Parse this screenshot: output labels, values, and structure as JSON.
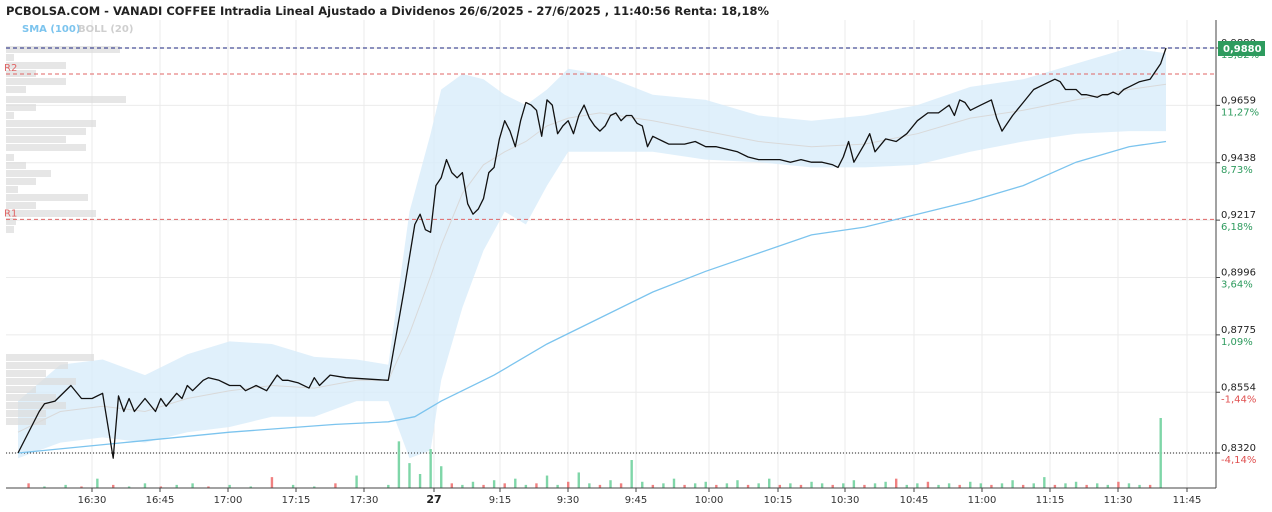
{
  "title": "PCBOLSA.COM - VANADI COFFEE Intradia Lineal Ajustado a Dividenos 26/6/2025 - 27/6/2025 , 11:40:56 Renta: 18,18%",
  "legend": {
    "sma": "SMA (100)",
    "boll": "BOLL (20)"
  },
  "colors": {
    "price": "#111111",
    "sma": "#7cc4ee",
    "boll_fill": "#d8ecfa",
    "boll_mid": "#d9d9d9",
    "vol_up": "#7fd6a8",
    "vol_down": "#f08080",
    "pivot": "#e06666",
    "last_line": "#1a237e",
    "tag_bg": "#2e9b5e",
    "pct_pos": "#2e9b5e",
    "pct_neg": "#e05050"
  },
  "last_price": "0,9880",
  "chart_data": {
    "type": "line",
    "title": "PCBOLSA.COM - VANADI COFFEE Intradia Lineal Ajustado a Dividenos 26/6/2025 - 27/6/2025 , 11:40:56 Renta: 18,18%",
    "xlabel": "",
    "ylabel": "",
    "ylim": [
      0.82,
      1.0
    ],
    "x_ticks": [
      "16:30",
      "16:45",
      "17:00",
      "17:15",
      "17:30",
      "27",
      "9:15",
      "9:30",
      "9:45",
      "10:00",
      "10:15",
      "10:30",
      "10:45",
      "11:00",
      "11:15",
      "11:30",
      "11:45"
    ],
    "y_ticks": [
      {
        "price": "0,8320",
        "value": 0.832,
        "pct": "-4,14%"
      },
      {
        "price": "0,8554",
        "value": 0.8554,
        "pct": "-1,44%"
      },
      {
        "price": "0,8775",
        "value": 0.8775,
        "pct": "1,09%"
      },
      {
        "price": "0,8996",
        "value": 0.8996,
        "pct": "3,64%"
      },
      {
        "price": "0,9217",
        "value": 0.9217,
        "pct": "6,18%"
      },
      {
        "price": "0,9438",
        "value": 0.9438,
        "pct": "8,73%"
      },
      {
        "price": "0,9659",
        "value": 0.9659,
        "pct": "11,27%"
      },
      {
        "price": "0,9880",
        "value": 0.988,
        "pct": "13,82%"
      }
    ],
    "pivots": [
      {
        "label": "R2",
        "value": 0.978
      },
      {
        "label": "R1",
        "value": 0.922
      }
    ],
    "series": [
      {
        "name": "Precio",
        "x": [
          0,
          4,
          5,
          7,
          10,
          12,
          14,
          16,
          18,
          19,
          20,
          21,
          22,
          24,
          26,
          27,
          28,
          30,
          31,
          32,
          33,
          35,
          36,
          38,
          40,
          42,
          43,
          45,
          47,
          49,
          50,
          51,
          53,
          55,
          56,
          57,
          59,
          62,
          70,
          73,
          75,
          76,
          77,
          78,
          79,
          80,
          81,
          82,
          83,
          84,
          85,
          86,
          87,
          88,
          89,
          90,
          91,
          92,
          93,
          94,
          95,
          96,
          97,
          98,
          99,
          100,
          101,
          102,
          103,
          104,
          105,
          106,
          107,
          108,
          109,
          110,
          111,
          112,
          113,
          114,
          115,
          116,
          117,
          118,
          119,
          120,
          121,
          122,
          123,
          124,
          126,
          128,
          130,
          132,
          134,
          136,
          138,
          140,
          142,
          144,
          146,
          148,
          150,
          152,
          154,
          155,
          156,
          157,
          158,
          160,
          161,
          162,
          164,
          166,
          168,
          170,
          172,
          174,
          176,
          177,
          178,
          179,
          180,
          182,
          184,
          185,
          186,
          188,
          190,
          192,
          194,
          196,
          197,
          198,
          200,
          201,
          202,
          204,
          205,
          206,
          207,
          208,
          209,
          210,
          212,
          214,
          216,
          217
        ],
        "values": [
          0.832,
          0.848,
          0.851,
          0.852,
          0.858,
          0.853,
          0.853,
          0.855,
          0.83,
          0.854,
          0.848,
          0.853,
          0.848,
          0.853,
          0.848,
          0.853,
          0.85,
          0.855,
          0.853,
          0.858,
          0.856,
          0.86,
          0.861,
          0.86,
          0.858,
          0.858,
          0.856,
          0.858,
          0.856,
          0.862,
          0.86,
          0.86,
          0.859,
          0.857,
          0.861,
          0.858,
          0.862,
          0.861,
          0.86,
          0.895,
          0.92,
          0.924,
          0.918,
          0.917,
          0.935,
          0.938,
          0.945,
          0.94,
          0.938,
          0.94,
          0.928,
          0.924,
          0.926,
          0.93,
          0.94,
          0.942,
          0.953,
          0.96,
          0.956,
          0.95,
          0.96,
          0.967,
          0.966,
          0.964,
          0.954,
          0.968,
          0.966,
          0.955,
          0.958,
          0.96,
          0.955,
          0.962,
          0.966,
          0.961,
          0.958,
          0.956,
          0.958,
          0.962,
          0.963,
          0.96,
          0.962,
          0.962,
          0.959,
          0.958,
          0.95,
          0.954,
          0.953,
          0.952,
          0.951,
          0.951,
          0.951,
          0.952,
          0.95,
          0.95,
          0.949,
          0.948,
          0.946,
          0.945,
          0.945,
          0.945,
          0.944,
          0.945,
          0.944,
          0.944,
          0.943,
          0.942,
          0.946,
          0.952,
          0.944,
          0.951,
          0.955,
          0.948,
          0.953,
          0.952,
          0.955,
          0.96,
          0.963,
          0.963,
          0.966,
          0.962,
          0.968,
          0.967,
          0.964,
          0.966,
          0.968,
          0.961,
          0.956,
          0.962,
          0.967,
          0.972,
          0.974,
          0.976,
          0.975,
          0.972,
          0.972,
          0.97,
          0.97,
          0.969,
          0.97,
          0.97,
          0.971,
          0.97,
          0.972,
          0.973,
          0.975,
          0.976,
          0.982,
          0.988
        ]
      },
      {
        "name": "SMA (100)",
        "x": [
          0,
          20,
          40,
          60,
          70,
          75,
          80,
          90,
          100,
          110,
          120,
          130,
          140,
          150,
          160,
          170,
          180,
          190,
          200,
          210,
          217
        ],
        "values": [
          0.832,
          0.836,
          0.84,
          0.843,
          0.844,
          0.846,
          0.852,
          0.862,
          0.874,
          0.884,
          0.894,
          0.902,
          0.909,
          0.916,
          0.919,
          0.924,
          0.929,
          0.935,
          0.944,
          0.95,
          0.952
        ]
      }
    ],
    "bollinger": {
      "name": "BOLL (20)",
      "x": [
        0,
        8,
        16,
        24,
        32,
        40,
        48,
        56,
        64,
        70,
        74,
        78,
        80,
        84,
        88,
        92,
        96,
        100,
        104,
        110,
        120,
        130,
        140,
        150,
        160,
        170,
        180,
        190,
        200,
        210,
        217
      ],
      "upper": [
        0.852,
        0.866,
        0.868,
        0.862,
        0.87,
        0.875,
        0.874,
        0.869,
        0.868,
        0.866,
        0.925,
        0.955,
        0.972,
        0.978,
        0.976,
        0.97,
        0.966,
        0.972,
        0.98,
        0.978,
        0.97,
        0.968,
        0.962,
        0.96,
        0.962,
        0.966,
        0.973,
        0.976,
        0.982,
        0.988,
        0.986
      ],
      "middle": [
        0.84,
        0.848,
        0.85,
        0.848,
        0.853,
        0.856,
        0.858,
        0.857,
        0.86,
        0.86,
        0.878,
        0.9,
        0.912,
        0.932,
        0.943,
        0.948,
        0.952,
        0.958,
        0.961,
        0.963,
        0.96,
        0.956,
        0.952,
        0.95,
        0.951,
        0.955,
        0.961,
        0.964,
        0.968,
        0.972,
        0.974
      ],
      "lower": [
        0.83,
        0.836,
        0.838,
        0.836,
        0.84,
        0.842,
        0.846,
        0.846,
        0.852,
        0.852,
        0.83,
        0.833,
        0.86,
        0.888,
        0.91,
        0.925,
        0.92,
        0.935,
        0.948,
        0.948,
        0.948,
        0.945,
        0.944,
        0.942,
        0.942,
        0.943,
        0.948,
        0.952,
        0.955,
        0.956,
        0.956
      ]
    },
    "volume": {
      "x": [
        2,
        5,
        9,
        12,
        15,
        18,
        21,
        24,
        27,
        30,
        33,
        36,
        40,
        44,
        48,
        52,
        56,
        60,
        64,
        70,
        72,
        74,
        76,
        78,
        80,
        82,
        84,
        86,
        88,
        90,
        92,
        94,
        96,
        98,
        100,
        102,
        104,
        106,
        108,
        110,
        112,
        114,
        116,
        118,
        120,
        122,
        124,
        126,
        128,
        130,
        132,
        134,
        136,
        138,
        140,
        142,
        144,
        146,
        148,
        150,
        152,
        154,
        156,
        158,
        160,
        162,
        164,
        166,
        168,
        170,
        172,
        174,
        176,
        178,
        180,
        182,
        184,
        186,
        188,
        190,
        192,
        194,
        196,
        198,
        200,
        202,
        204,
        206,
        208,
        210,
        212,
        214,
        216
      ],
      "values": [
        3,
        1,
        2,
        1,
        6,
        2,
        1,
        3,
        1,
        2,
        3,
        1,
        2,
        1,
        7,
        2,
        1,
        3,
        8,
        2,
        30,
        16,
        9,
        25,
        14,
        3,
        2,
        4,
        2,
        5,
        3,
        6,
        2,
        3,
        8,
        2,
        4,
        10,
        3,
        2,
        5,
        3,
        18,
        4,
        2,
        3,
        6,
        2,
        3,
        4,
        2,
        3,
        5,
        2,
        3,
        6,
        2,
        3,
        2,
        4,
        3,
        2,
        3,
        5,
        2,
        3,
        4,
        6,
        2,
        3,
        4,
        2,
        3,
        2,
        4,
        3,
        2,
        3,
        5,
        2,
        3,
        7,
        2,
        3,
        4,
        2,
        3,
        2,
        4,
        3,
        2,
        2,
        45
      ],
      "up": [
        false,
        true,
        true,
        false,
        true,
        false,
        true,
        true,
        false,
        true,
        true,
        false,
        true,
        true,
        false,
        true,
        true,
        false,
        true,
        true,
        true,
        true,
        true,
        true,
        true,
        false,
        true,
        true,
        false,
        true,
        false,
        true,
        true,
        false,
        true,
        true,
        false,
        true,
        true,
        false,
        true,
        false,
        true,
        true,
        false,
        true,
        true,
        false,
        true,
        true,
        false,
        true,
        true,
        false,
        true,
        true,
        false,
        true,
        false,
        true,
        true,
        false,
        true,
        true,
        false,
        true,
        true,
        false,
        true,
        true,
        false,
        true,
        true,
        false,
        true,
        true,
        false,
        true,
        true,
        false,
        true,
        true,
        false,
        true,
        true,
        false,
        true,
        true,
        false,
        true,
        true,
        false,
        true
      ]
    }
  }
}
